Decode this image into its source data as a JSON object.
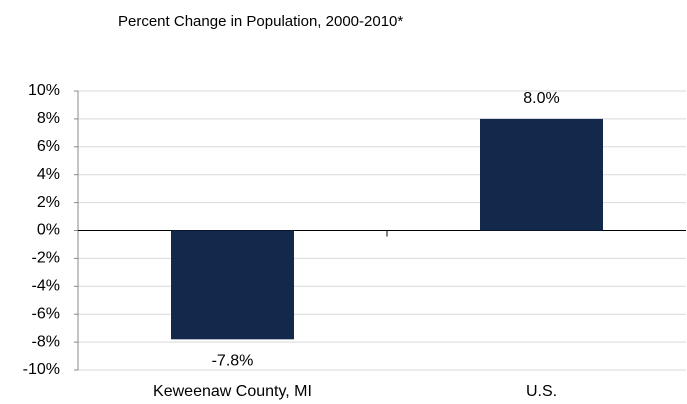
{
  "chart_data": {
    "type": "bar",
    "title": "Percent Change in Population, 2000-2010*",
    "categories": [
      "Keweenaw County, MI",
      "U.S."
    ],
    "values": [
      -7.8,
      8.0
    ],
    "value_labels": [
      "-7.8%",
      "8.0%"
    ],
    "color": "#13294b",
    "ylim": [
      -10,
      10
    ],
    "yticks": [
      {
        "value": -10,
        "label": "-10%"
      },
      {
        "value": -8,
        "label": "-8%"
      },
      {
        "value": -6,
        "label": "-6%"
      },
      {
        "value": -4,
        "label": "-4%"
      },
      {
        "value": -2,
        "label": "-2%"
      },
      {
        "value": 0,
        "label": "0%"
      },
      {
        "value": 2,
        "label": "2%"
      },
      {
        "value": 4,
        "label": "4%"
      },
      {
        "value": 6,
        "label": "6%"
      },
      {
        "value": 8,
        "label": "8%"
      },
      {
        "value": 10,
        "label": "10%"
      }
    ],
    "grid": true
  }
}
